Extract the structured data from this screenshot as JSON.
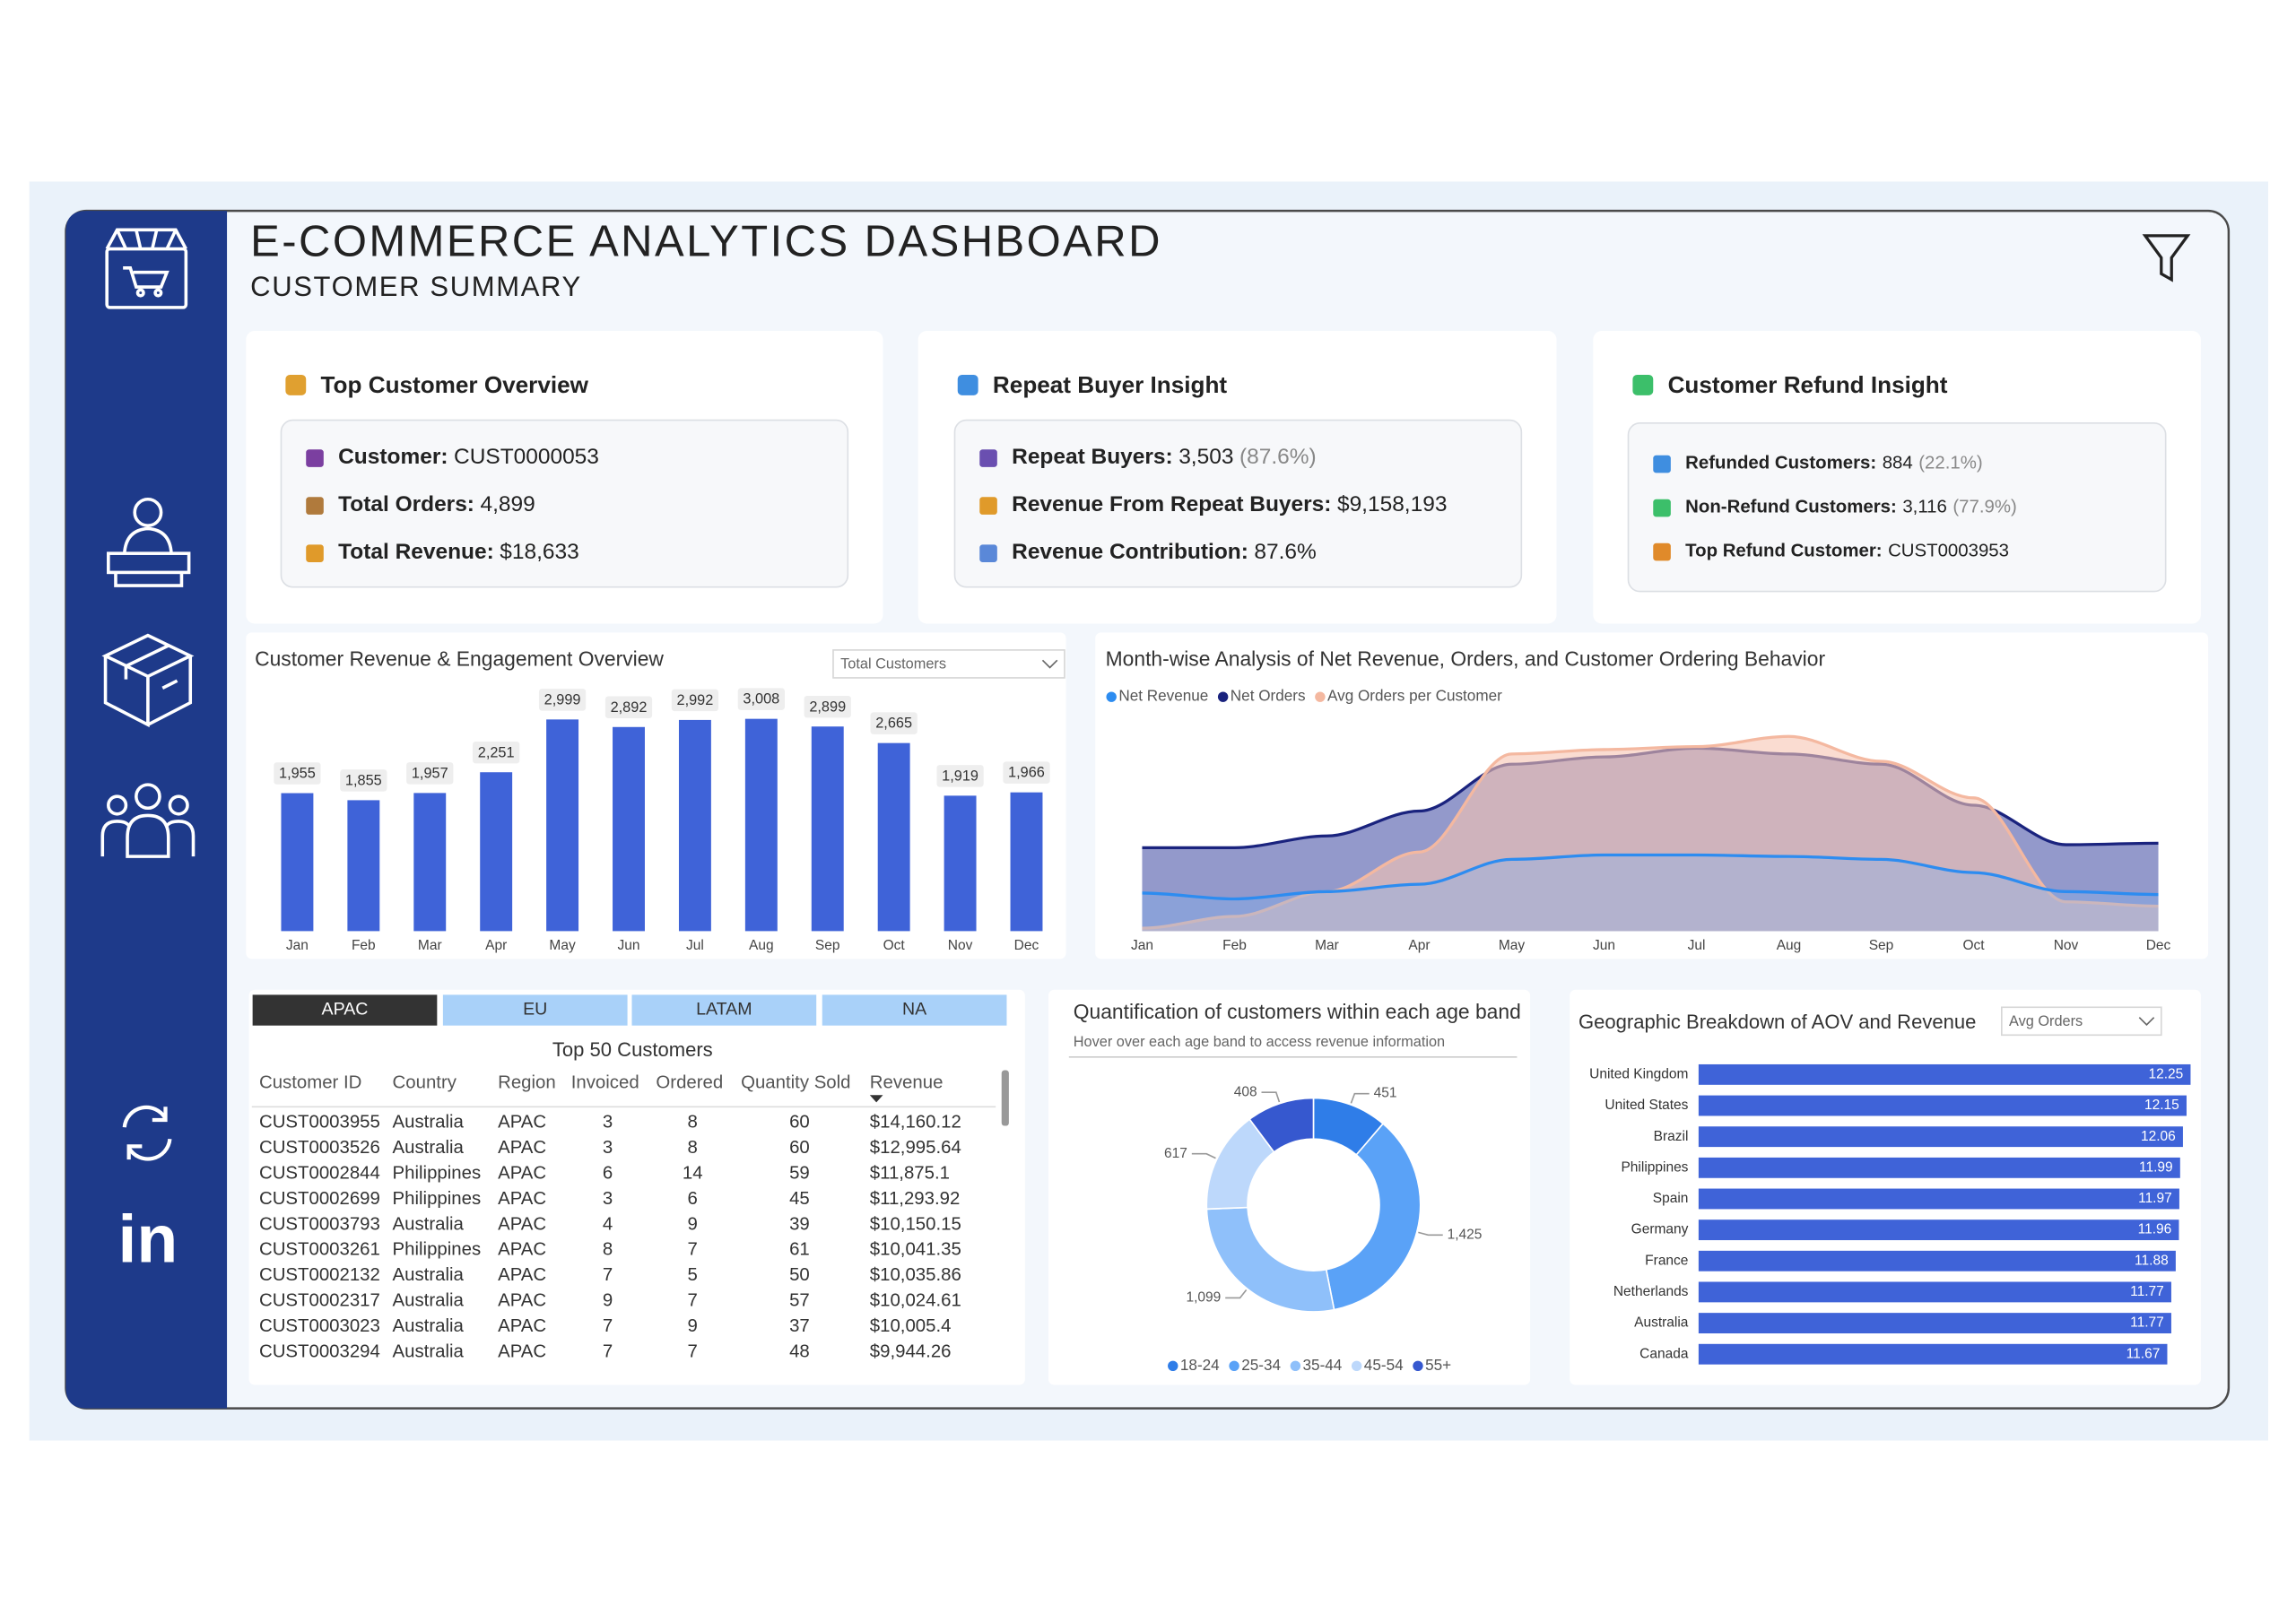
{
  "sidebar": {
    "linkedin": "in"
  },
  "header": {
    "title": "E-COMMERCE ANALYTICS DASHBOARD",
    "subtitle": "CUSTOMER SUMMARY"
  },
  "cards": [
    {
      "title": "Top Customer Overview",
      "items": [
        {
          "label": "Customer:",
          "value": "CUST0000053"
        },
        {
          "label": "Total Orders:",
          "value": "4,899"
        },
        {
          "label": "Total Revenue:",
          "value": "$18,633"
        }
      ]
    },
    {
      "title": "Repeat Buyer Insight",
      "items": [
        {
          "label": "Repeat Buyers:",
          "value": "3,503",
          "note": "(87.6%)"
        },
        {
          "label": "Revenue From Repeat Buyers:",
          "value": "$9,158,193"
        },
        {
          "label": "Revenue Contribution:",
          "value": "87.6%"
        }
      ]
    },
    {
      "title": "Customer Refund Insight",
      "items": [
        {
          "label": "Refunded Customers:",
          "value": "884",
          "note": "(22.1%)"
        },
        {
          "label": "Non-Refund Customers:",
          "value": "3,116",
          "note": "(77.9%)"
        },
        {
          "label": "Top Refund Customer:",
          "value": "CUST0003953"
        }
      ]
    }
  ],
  "table": {
    "tabs": [
      "APAC",
      "EU",
      "LATAM",
      "NA"
    ],
    "active_tab": 0,
    "title": "Top 50 Customers",
    "columns": [
      "Customer ID",
      "Country",
      "Region",
      "Invoiced",
      "Ordered",
      "Quantity Sold",
      "Revenue"
    ],
    "rows": [
      [
        "CUST0003955",
        "Australia",
        "APAC",
        3,
        8,
        60,
        "$14,160.12"
      ],
      [
        "CUST0003526",
        "Australia",
        "APAC",
        3,
        8,
        60,
        "$12,995.64"
      ],
      [
        "CUST0002844",
        "Philippines",
        "APAC",
        6,
        14,
        59,
        "$11,875.1"
      ],
      [
        "CUST0002699",
        "Philippines",
        "APAC",
        3,
        6,
        45,
        "$11,293.92"
      ],
      [
        "CUST0003793",
        "Australia",
        "APAC",
        4,
        9,
        39,
        "$10,150.15"
      ],
      [
        "CUST0003261",
        "Philippines",
        "APAC",
        8,
        7,
        61,
        "$10,041.35"
      ],
      [
        "CUST0002132",
        "Australia",
        "APAC",
        7,
        5,
        50,
        "$10,035.86"
      ],
      [
        "CUST0002317",
        "Australia",
        "APAC",
        9,
        7,
        57,
        "$10,024.61"
      ],
      [
        "CUST0003023",
        "Australia",
        "APAC",
        7,
        9,
        37,
        "$10,005.4"
      ],
      [
        "CUST0003294",
        "Australia",
        "APAC",
        7,
        7,
        48,
        "$9,944.26"
      ]
    ]
  },
  "chart_data": [
    {
      "type": "bar",
      "title": "Customer Revenue & Engagement Overview",
      "dropdown": "Total Customers",
      "categories": [
        "Jan",
        "Feb",
        "Mar",
        "Apr",
        "May",
        "Jun",
        "Jul",
        "Aug",
        "Sep",
        "Oct",
        "Nov",
        "Dec"
      ],
      "values": [
        1955,
        1855,
        1957,
        2251,
        2999,
        2892,
        2992,
        3008,
        2899,
        2665,
        1919,
        1966
      ],
      "value_labels": [
        "1,955",
        "1,855",
        "1,957",
        "2,251",
        "2,999",
        "2,892",
        "2,992",
        "3,008",
        "2,899",
        "2,665",
        "1,919",
        "1,966"
      ],
      "color": "#3f63d8"
    },
    {
      "type": "area",
      "title": "Month-wise Analysis of Net Revenue, Orders, and Customer Ordering Behavior",
      "categories": [
        "Jan",
        "Feb",
        "Mar",
        "Apr",
        "May",
        "Jun",
        "Jul",
        "Aug",
        "Sep",
        "Oct",
        "Nov",
        "Dec"
      ],
      "series": [
        {
          "name": "Net Revenue",
          "color": "#2d8cf0",
          "values": [
            26,
            22,
            27,
            32,
            49,
            52,
            52,
            51,
            49,
            40,
            27,
            25
          ]
        },
        {
          "name": "Net Orders",
          "color": "#1a237e",
          "values": [
            57,
            57,
            65,
            82,
            114,
            119,
            125,
            121,
            114,
            86,
            59,
            60
          ]
        },
        {
          "name": "Avg Orders per Customer",
          "color": "#f4b8a0",
          "values": [
            2,
            10,
            27,
            54,
            121,
            124,
            126,
            133,
            116,
            91,
            20,
            17
          ]
        }
      ]
    },
    {
      "type": "donut",
      "title": "Quantification of customers within each age band",
      "subtitle": "Hover over each age band to access revenue information",
      "categories": [
        "18-24",
        "25-34",
        "35-44",
        "45-54",
        "55+"
      ],
      "values": [
        451,
        1425,
        1099,
        617,
        408
      ],
      "value_labels": [
        "451",
        "1,425",
        "1,099",
        "617",
        "408"
      ],
      "colors": [
        "#2f7de8",
        "#5aa2f7",
        "#8fc0fa",
        "#bdd8fb",
        "#3658cf"
      ]
    },
    {
      "type": "hbar",
      "title": "Geographic Breakdown of AOV and Revenue",
      "dropdown": "Avg Orders",
      "categories": [
        "United Kingdom",
        "United States",
        "Brazil",
        "Philippines",
        "Spain",
        "Germany",
        "France",
        "Netherlands",
        "Australia",
        "Canada"
      ],
      "values": [
        12.25,
        12.15,
        12.06,
        11.99,
        11.97,
        11.96,
        11.88,
        11.77,
        11.77,
        11.67
      ],
      "color": "#3f63d8"
    }
  ]
}
